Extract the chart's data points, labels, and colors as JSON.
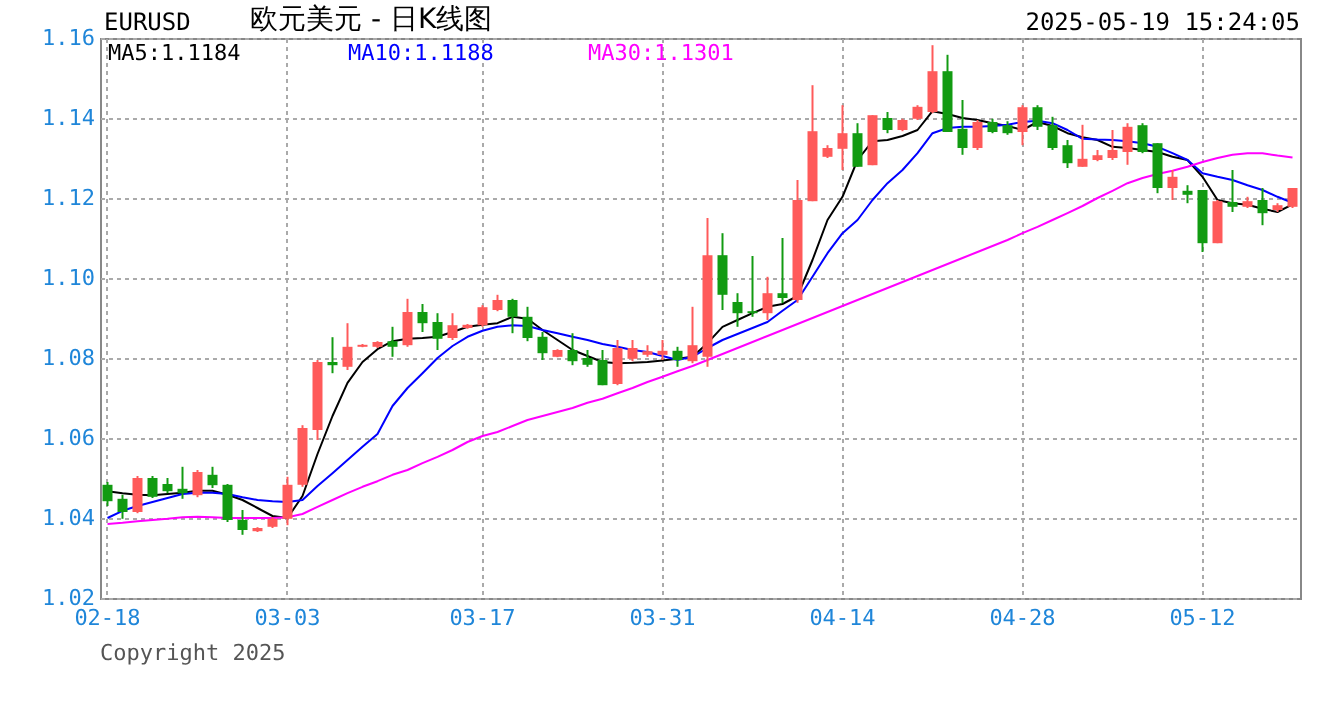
{
  "chart_data": {
    "type": "candlestick",
    "title": "欧元美元 - 日K线图",
    "subtitle": "EURUSD",
    "annotations": [
      "2025-05-19 15:24:05",
      "Copyright 2025"
    ],
    "categories": [
      "02-18",
      null,
      null,
      null,
      null,
      null,
      null,
      null,
      null,
      null,
      null,
      null,
      "03-03",
      null,
      null,
      null,
      null,
      null,
      null,
      null,
      null,
      null,
      null,
      null,
      null,
      "03-17",
      null,
      null,
      null,
      null,
      null,
      null,
      null,
      null,
      null,
      null,
      null,
      "03-31",
      null,
      null,
      null,
      null,
      null,
      null,
      null,
      null,
      null,
      null,
      null,
      "04-14",
      null,
      null,
      null,
      null,
      null,
      null,
      null,
      null,
      null,
      null,
      null,
      "04-28",
      null,
      null,
      null,
      null,
      null,
      null,
      null,
      null,
      null,
      null,
      null,
      "05-12",
      null,
      null,
      null,
      null,
      null,
      null
    ],
    "ohlc": [
      [
        1.0483,
        1.049,
        1.043,
        1.0442
      ],
      [
        1.0448,
        1.0458,
        1.0398,
        1.0415
      ],
      [
        1.0415,
        1.0505,
        1.0412,
        1.05
      ],
      [
        1.05,
        1.0505,
        1.045,
        1.0453
      ],
      [
        1.0485,
        1.05,
        1.0462,
        1.0467
      ],
      [
        1.0473,
        1.0528,
        1.0448,
        1.0462
      ],
      [
        1.0457,
        1.052,
        1.0452,
        1.0515
      ],
      [
        1.0508,
        1.0528,
        1.0475,
        1.0482
      ],
      [
        1.0483,
        1.0485,
        1.039,
        1.0395
      ],
      [
        1.0395,
        1.042,
        1.0358,
        1.037
      ],
      [
        1.0367,
        1.0377,
        1.0365,
        1.0375
      ],
      [
        1.0378,
        1.0402,
        1.0375,
        1.0398
      ],
      [
        1.0398,
        1.0503,
        1.0382,
        1.0483
      ],
      [
        1.0483,
        1.0632,
        1.0478,
        1.0625
      ],
      [
        1.062,
        1.0795,
        1.0595,
        1.079
      ],
      [
        1.079,
        1.0852,
        1.0762,
        1.0782
      ],
      [
        1.0778,
        1.0887,
        1.077,
        1.0828
      ],
      [
        1.0828,
        1.0835,
        1.0827,
        1.0833
      ],
      [
        1.0828,
        1.0842,
        1.0825,
        1.084
      ],
      [
        1.0842,
        1.0878,
        1.0803,
        1.0828
      ],
      [
        1.0832,
        1.0948,
        1.0828,
        1.0915
      ],
      [
        1.0915,
        1.0935,
        1.0865,
        1.0887
      ],
      [
        1.089,
        1.0912,
        1.082,
        1.0848
      ],
      [
        1.085,
        1.0912,
        1.0845,
        1.0882
      ],
      [
        1.0875,
        1.0885,
        1.0873,
        1.0883
      ],
      [
        1.0882,
        1.0932,
        1.0878,
        1.0927
      ],
      [
        1.092,
        1.0958,
        1.0917,
        1.0945
      ],
      [
        1.0945,
        1.0948,
        1.0862,
        1.0903
      ],
      [
        1.0903,
        1.0928,
        1.0842,
        1.085
      ],
      [
        1.0853,
        1.0865,
        1.0795,
        1.0812
      ],
      [
        1.0803,
        1.0822,
        1.0802,
        1.082
      ],
      [
        1.082,
        1.0862,
        1.0782,
        1.0792
      ],
      [
        1.08,
        1.082,
        1.0778,
        1.0783
      ],
      [
        1.0795,
        1.082,
        1.0732,
        1.0732
      ],
      [
        1.0735,
        1.0845,
        1.0732,
        1.0825
      ],
      [
        1.0798,
        1.0845,
        1.0792,
        1.0825
      ],
      [
        1.0808,
        1.0832,
        1.0803,
        1.0817
      ],
      [
        1.0808,
        1.0845,
        1.0795,
        1.0818
      ],
      [
        1.0818,
        1.0828,
        1.0778,
        1.0795
      ],
      [
        1.0792,
        1.0928,
        1.0787,
        1.0832
      ],
      [
        1.0803,
        1.115,
        1.0778,
        1.1057
      ],
      [
        1.1057,
        1.1112,
        1.092,
        1.0958
      ],
      [
        1.094,
        1.0962,
        1.0878,
        1.0912
      ],
      [
        1.0917,
        1.1055,
        1.0903,
        1.0912
      ],
      [
        1.0912,
        1.1003,
        1.0895,
        1.0962
      ],
      [
        1.0962,
        1.11,
        1.0937,
        1.095
      ],
      [
        1.0945,
        1.1245,
        1.0938,
        1.1195
      ],
      [
        1.1192,
        1.1482,
        1.1192,
        1.1367
      ],
      [
        1.1303,
        1.1332,
        1.13,
        1.1325
      ],
      [
        1.1323,
        1.1432,
        1.127,
        1.1362
      ],
      [
        1.1362,
        1.1387,
        1.1278,
        1.1278
      ],
      [
        1.1282,
        1.1407,
        1.1282,
        1.1407
      ],
      [
        1.14,
        1.1415,
        1.1362,
        1.137
      ],
      [
        1.137,
        1.1398,
        1.1367,
        1.1395
      ],
      [
        1.1398,
        1.1432,
        1.1395,
        1.1428
      ],
      [
        1.1415,
        1.1582,
        1.1412,
        1.1517
      ],
      [
        1.1517,
        1.1558,
        1.1365,
        1.1365
      ],
      [
        1.1373,
        1.1445,
        1.1308,
        1.1325
      ],
      [
        1.1325,
        1.1395,
        1.132,
        1.139
      ],
      [
        1.139,
        1.1398,
        1.1362,
        1.1365
      ],
      [
        1.1382,
        1.1392,
        1.1358,
        1.1362
      ],
      [
        1.1365,
        1.1432,
        1.1332,
        1.1427
      ],
      [
        1.1427,
        1.1432,
        1.137,
        1.1378
      ],
      [
        1.1382,
        1.1403,
        1.132,
        1.1325
      ],
      [
        1.1332,
        1.1345,
        1.1275,
        1.1287
      ],
      [
        1.1278,
        1.1383,
        1.1278,
        1.1298
      ],
      [
        1.1295,
        1.132,
        1.1292,
        1.1307
      ],
      [
        1.13,
        1.137,
        1.1295,
        1.132
      ],
      [
        1.1315,
        1.1387,
        1.1283,
        1.1378
      ],
      [
        1.1382,
        1.1387,
        1.1312,
        1.1315
      ],
      [
        1.1337,
        1.1337,
        1.1212,
        1.1225
      ],
      [
        1.1225,
        1.127,
        1.1195,
        1.1253
      ],
      [
        1.1218,
        1.1232,
        1.1187,
        1.1208
      ],
      [
        1.122,
        1.122,
        1.1065,
        1.1087
      ],
      [
        1.1087,
        1.1195,
        1.1087,
        1.1192
      ],
      [
        1.119,
        1.127,
        1.1165,
        1.1178
      ],
      [
        1.1178,
        1.1203,
        1.1175,
        1.1192
      ],
      [
        1.1195,
        1.1225,
        1.1132,
        1.1162
      ],
      [
        1.117,
        1.1187,
        1.1165,
        1.1182
      ],
      [
        1.1178,
        1.1225,
        1.1175,
        1.1225
      ]
    ],
    "series": [
      {
        "name": "MA5:1.1184",
        "color": "#000000",
        "type": "line",
        "values": [
          1.0467,
          1.0462,
          1.0458,
          1.0457,
          1.046,
          1.0463,
          1.0468,
          1.0468,
          1.0458,
          1.0445,
          1.0425,
          1.0405,
          1.04,
          1.0455,
          1.056,
          1.0655,
          1.0738,
          1.079,
          1.0822,
          1.0842,
          1.0848,
          1.085,
          1.0853,
          1.0865,
          1.0878,
          1.0883,
          1.0887,
          1.0903,
          1.0898,
          1.087,
          1.0845,
          1.082,
          1.0805,
          1.079,
          1.0787,
          1.0788,
          1.079,
          1.0794,
          1.0798,
          1.0803,
          1.0837,
          1.0878,
          1.0895,
          1.0912,
          1.0928,
          1.0935,
          1.0955,
          1.1045,
          1.1145,
          1.1203,
          1.1295,
          1.1342,
          1.1345,
          1.1355,
          1.137,
          1.1417,
          1.141,
          1.14,
          1.1395,
          1.1387,
          1.138,
          1.137,
          1.139,
          1.138,
          1.1362,
          1.1352,
          1.1345,
          1.1328,
          1.1325,
          1.132,
          1.1315,
          1.1303,
          1.1295,
          1.1253,
          1.1195,
          1.1187,
          1.1183,
          1.1173,
          1.1165,
          1.1184
        ]
      },
      {
        "name": "MA10:1.1188",
        "color": "#0000ff",
        "type": "line",
        "values": [
          1.04,
          1.0418,
          1.043,
          1.044,
          1.045,
          1.046,
          1.0463,
          1.0463,
          1.046,
          1.0452,
          1.0445,
          1.0442,
          1.044,
          1.0445,
          1.048,
          1.0512,
          1.0545,
          1.0578,
          1.061,
          1.068,
          1.0725,
          1.0762,
          1.08,
          1.083,
          1.0853,
          1.0868,
          1.0878,
          1.0882,
          1.088,
          1.087,
          1.0862,
          1.0853,
          1.0845,
          1.0835,
          1.0828,
          1.082,
          1.0815,
          1.0805,
          1.0795,
          1.0803,
          1.0825,
          1.0845,
          1.086,
          1.0875,
          1.089,
          1.0918,
          1.0945,
          1.1003,
          1.1062,
          1.1112,
          1.1145,
          1.1195,
          1.1237,
          1.127,
          1.1312,
          1.1362,
          1.1375,
          1.1378,
          1.1378,
          1.138,
          1.1383,
          1.139,
          1.1393,
          1.1387,
          1.137,
          1.1348,
          1.1346,
          1.1345,
          1.1342,
          1.1337,
          1.1328,
          1.1312,
          1.1295,
          1.1262,
          1.1253,
          1.1245,
          1.1232,
          1.122,
          1.1203,
          1.1188
        ]
      },
      {
        "name": "MA30:1.1301",
        "color": "#ff00ff",
        "type": "line",
        "values": [
          1.0385,
          1.0388,
          1.0392,
          1.0395,
          1.0398,
          1.0402,
          1.0403,
          1.0402,
          1.04,
          1.04,
          1.04,
          1.04,
          1.0402,
          1.041,
          1.0428,
          1.0445,
          1.0462,
          1.0478,
          1.0492,
          1.0508,
          1.052,
          1.0537,
          1.0553,
          1.057,
          1.059,
          1.0605,
          1.0615,
          1.063,
          1.0645,
          1.0655,
          1.0665,
          1.0675,
          1.0688,
          1.0698,
          1.0712,
          1.0725,
          1.074,
          1.0753,
          1.0767,
          1.078,
          1.0795,
          1.081,
          1.0825,
          1.084,
          1.0855,
          1.087,
          1.0885,
          1.09,
          1.0915,
          1.093,
          1.0945,
          1.096,
          1.0975,
          1.099,
          1.1005,
          1.102,
          1.1035,
          1.105,
          1.1065,
          1.108,
          1.1095,
          1.1112,
          1.1128,
          1.1145,
          1.1162,
          1.118,
          1.12,
          1.1218,
          1.1237,
          1.125,
          1.126,
          1.1268,
          1.1278,
          1.129,
          1.13,
          1.1308,
          1.1312,
          1.1312,
          1.1306,
          1.1301
        ]
      }
    ],
    "ylim": [
      1.02,
      1.16
    ],
    "yticks": [
      1.02,
      1.04,
      1.06,
      1.08,
      {
        "value": 1.1,
        "label": "1.10"
      },
      1.12,
      1.14,
      1.16
    ],
    "grid": true,
    "legend": "top left"
  }
}
